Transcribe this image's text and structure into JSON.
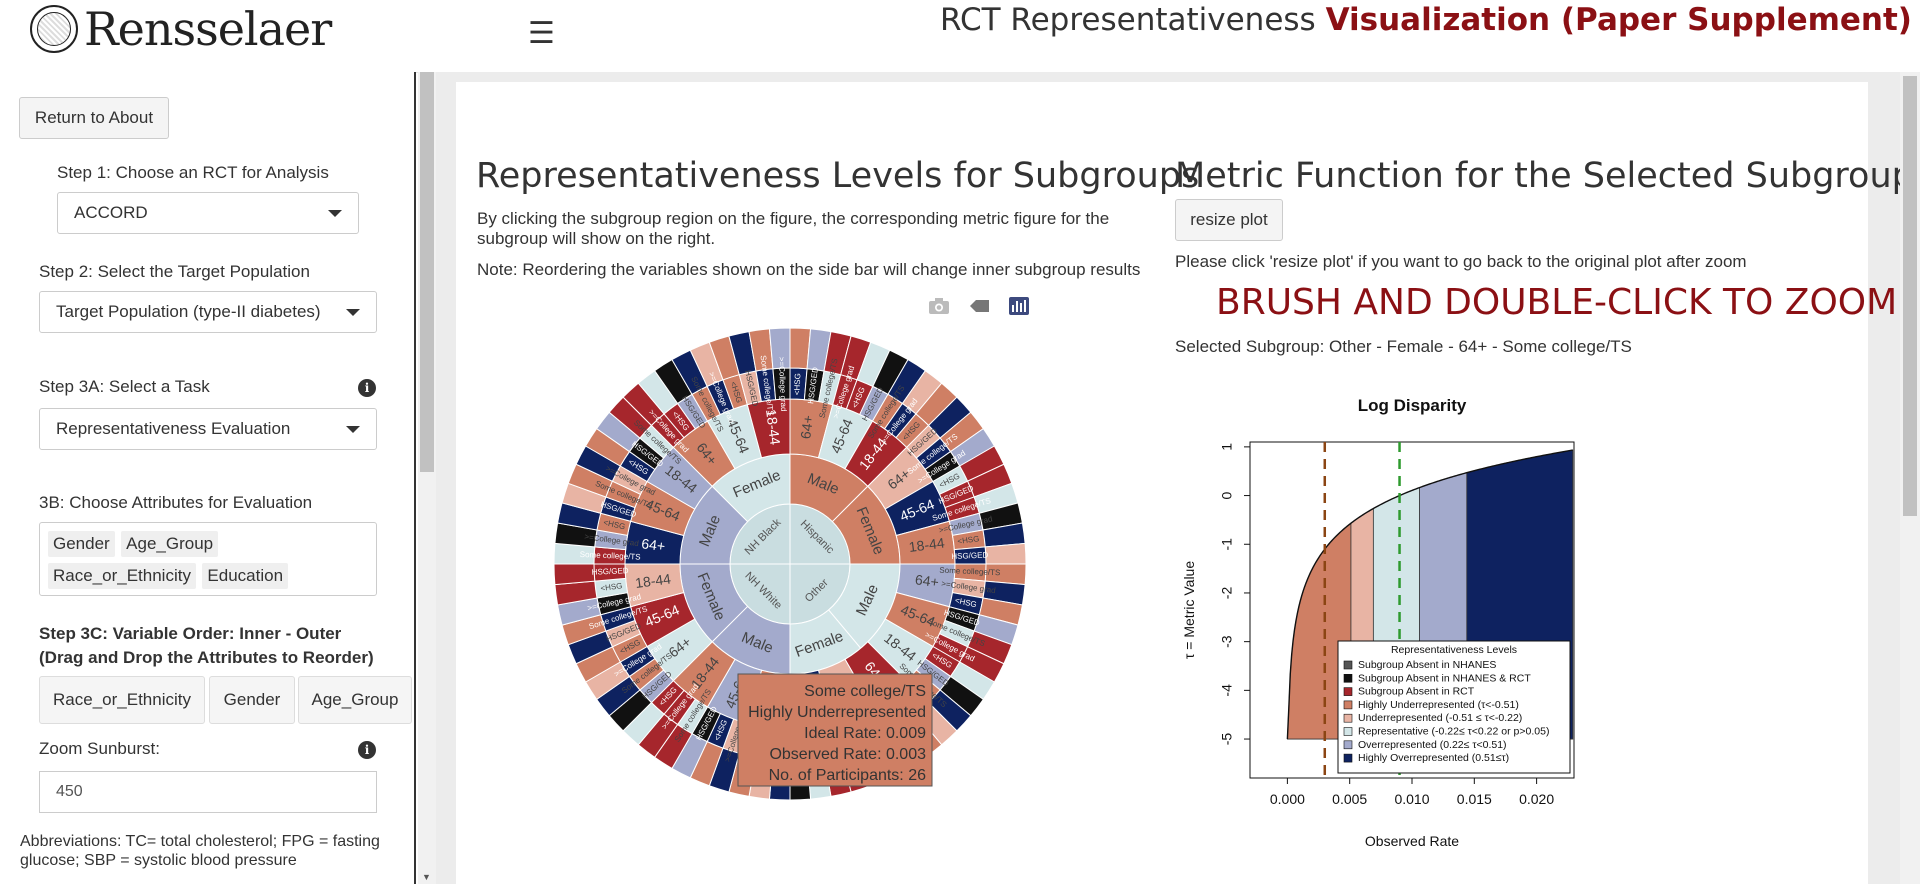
{
  "header": {
    "logo_text": "Rensselaer",
    "title_plain": "RCT Representativeness ",
    "title_bold": "Visualization (Paper Supplement)"
  },
  "sidebar": {
    "return_button": "Return to About",
    "step1_label": "Step 1: Choose an RCT for Analysis",
    "step1_value": "ACCORD",
    "step2_label": "Step 2: Select the Target Population",
    "step2_value": "Target Population (type-II diabetes)",
    "step3a_label": "Step 3A: Select a Task",
    "step3a_value": "Representativeness Evaluation",
    "step3b_label": "3B: Choose Attributes for Evaluation",
    "attributes": [
      "Gender",
      "Age_Group",
      "Race_or_Ethnicity",
      "Education"
    ],
    "step3c_label": "Step 3C: Variable Order: Inner - Outer (Drag and Drop the Attributes to Reorder)",
    "order_items": [
      "Race_or_Ethnicity",
      "Gender",
      "Age_Group"
    ],
    "zoom_label": "Zoom Sunburst:",
    "zoom_value": "450",
    "abbreviations": "Abbreviations: TC= total cholesterol; FPG = fasting glucose; SBP = systolic blood pressure"
  },
  "left_panel": {
    "title": "Representativeness Levels for Subgroups",
    "description": "By clicking the subgroup region on the figure, the corresponding metric figure for the subgroup will show on the right.",
    "note": "Note: Reordering the variables shown on the side bar will change inner subgroup results",
    "tooltip": {
      "line1": "Some college/TS",
      "line2": "Highly Underrepresented",
      "line3": "Ideal Rate: 0.009",
      "line4": "Observed Rate: 0.003",
      "line5": "No. of Participants: 26"
    },
    "sunburst": {
      "inner": [
        "NH Black",
        "Hispanic",
        "NH White",
        "Other"
      ],
      "gender": [
        "Female",
        "Male",
        "Female",
        "Male",
        "Female",
        "Male",
        "Female",
        "Male"
      ],
      "age": [
        "64+",
        "45-64",
        "18-44"
      ],
      "edu": [
        "<HSG",
        "HSG/GED",
        "Some college/TS",
        ">=College grad"
      ]
    },
    "colors": {
      "highly_under": "#cf7f64",
      "under": "#e8b4a4",
      "representative": "#d3e6e8",
      "over": "#a3aacc",
      "highly_over": "#0e2260",
      "absent_rct": "#a6262c",
      "absent_both": "#111111",
      "absent_nhanes": "#555555"
    }
  },
  "right_panel": {
    "title": "Metric Function for the Selected Subgroup",
    "resize_button": "resize plot",
    "resize_note": "Please click 'resize plot' if you want to go back to the original plot after zoom",
    "brush_title": "BRUSH AND DOUBLE-CLICK TO ZOOM",
    "selected_subgroup": "Selected Subgroup: Other - Female - 64+ - Some college/TS"
  },
  "chart_data": {
    "type": "area",
    "title": "Log Disparity",
    "xlabel": "Observed Rate",
    "ylabel": "τ = Metric Value",
    "xlim": [
      -0.003,
      0.023
    ],
    "ylim": [
      -5.8,
      1.1
    ],
    "x_ticks": [
      "0.000",
      "0.005",
      "0.010",
      "0.015",
      "0.020"
    ],
    "x_tick_values": [
      0,
      0.005,
      0.01,
      0.015,
      0.02
    ],
    "y_ticks": [
      "1",
      "0",
      "-1",
      "-2",
      "-3",
      "-4",
      "-5"
    ],
    "y_tick_values": [
      1,
      0,
      -1,
      -2,
      -3,
      -4,
      -5
    ],
    "ideal_rate": 0.009,
    "observed_rate": 0.003,
    "curve_x_end": 0.0229,
    "band_bounds": [
      0.0,
      0.0051,
      0.0069,
      0.0106,
      0.0144,
      0.0229
    ],
    "band_colors": [
      "#cf7f64",
      "#e8b4a4",
      "#d3e6e8",
      "#a3aacc",
      "#0e2260"
    ],
    "legend_title": "Representativeness Levels",
    "legend": [
      {
        "label": "Subgroup Absent in NHANES",
        "color": "#555555"
      },
      {
        "label": "Subgroup Absent in NHANES & RCT",
        "color": "#111111"
      },
      {
        "label": "Subgroup Absent in RCT",
        "color": "#a6262c"
      },
      {
        "label": "Highly Underrepresented (τ<-0.51)",
        "color": "#cf7f64"
      },
      {
        "label": "Underrepresented (-0.51 ≤ τ<-0.22)",
        "color": "#e8b4a4"
      },
      {
        "label": "Representative (-0.22≤ τ<0.22 or p>0.05)",
        "color": "#d3e6e8"
      },
      {
        "label": "Overrepresented (0.22≤ τ<0.51)",
        "color": "#a3aacc"
      },
      {
        "label": "Highly Overrepresented (0.51≤τ)",
        "color": "#0e2260"
      }
    ]
  }
}
